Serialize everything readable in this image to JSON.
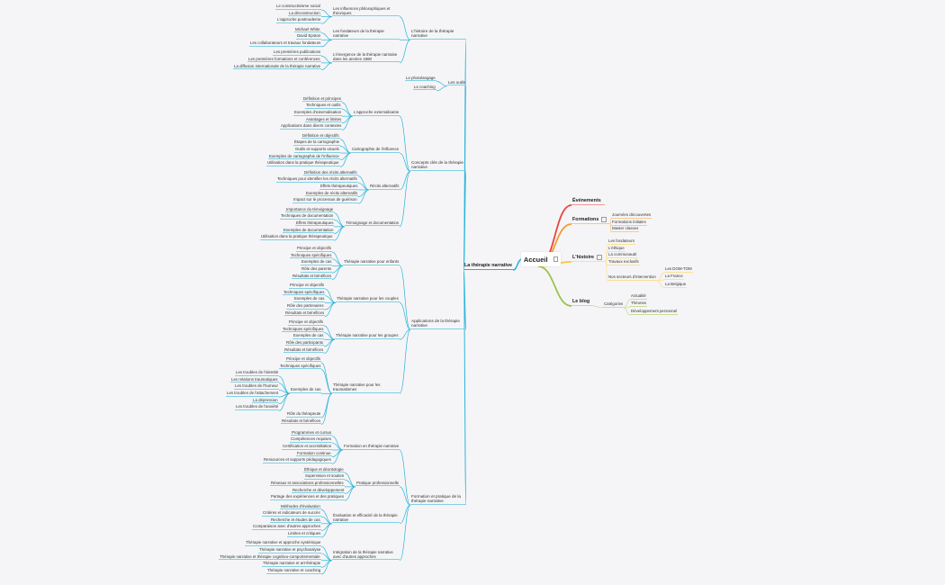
{
  "colors": {
    "left": "#2bb4d9",
    "events": "#e8453c",
    "formations": "#f59a32",
    "histoire": "#f5c842",
    "blog": "#9dc34a",
    "background": "#f5f5f7"
  },
  "root": {
    "label": "Accueil",
    "icon": "note-icon"
  },
  "right": [
    {
      "label": "Événements",
      "color": "#e8453c",
      "children": []
    },
    {
      "label": "Formations",
      "color": "#f59a32",
      "icon": "note-icon",
      "children": [
        {
          "label": "Journées découvertes"
        },
        {
          "label": "Formations initiales"
        },
        {
          "label": "Master classes"
        }
      ]
    },
    {
      "label": "L'histoire",
      "color": "#f5c842",
      "icon": "note-icon",
      "children": [
        {
          "label": "Les fondateurs"
        },
        {
          "label": "L'éthique"
        },
        {
          "label": "La communauté"
        },
        {
          "label": "Travaux exclusifs"
        },
        {
          "label": "Nos secteurs d'intervention",
          "children": [
            {
              "label": "Les DOM-TOM"
            },
            {
              "label": "La France"
            },
            {
              "label": "La Belgique"
            }
          ]
        }
      ]
    },
    {
      "label": "Le blog",
      "color": "#9dc34a",
      "children": [
        {
          "label": "Catégories",
          "children": [
            {
              "label": "Actualité"
            },
            {
              "label": "Théories"
            },
            {
              "label": "Développement personnel"
            }
          ]
        }
      ]
    }
  ],
  "left": {
    "label": "La thérapie narrative",
    "children": [
      {
        "label": "L'histoire de la thérapie narrative",
        "children": [
          {
            "label": "Les influences philosophiques et théoriques",
            "children": [
              {
                "label": "Le constructivisme social"
              },
              {
                "label": "La déconstruction"
              },
              {
                "label": "L'approche postmoderne"
              }
            ]
          },
          {
            "label": "Les fondateurs de la thérapie narrative",
            "children": [
              {
                "label": "Michael White"
              },
              {
                "label": "David Epston"
              },
              {
                "label": "Les collaborateurs et travaux fondateurs"
              }
            ]
          },
          {
            "label": "L'émergence de la thérapie narrative dans les années 1980",
            "children": [
              {
                "label": "Les premières publications"
              },
              {
                "label": "Les premières formations et conférences"
              },
              {
                "label": "La diffusion internationale de la thérapie narrative"
              }
            ]
          }
        ]
      },
      {
        "label": "Les outils",
        "children": [
          {
            "label": "Le photolangage"
          },
          {
            "label": "Le coaching"
          }
        ]
      },
      {
        "label": "Concepts clés de la thérapie narrative",
        "children": [
          {
            "label": "L'approche externalisante",
            "children": [
              {
                "label": "Définition et principes"
              },
              {
                "label": "Techniques et outils"
              },
              {
                "label": "Exemples d'externalisation"
              },
              {
                "label": "Avantages et limites"
              },
              {
                "label": "Applications dans divers contextes"
              }
            ]
          },
          {
            "label": "Cartographie de l'influence",
            "children": [
              {
                "label": "Définition et objectifs"
              },
              {
                "label": "Étapes de la cartographie"
              },
              {
                "label": "Outils et supports visuels"
              },
              {
                "label": "Exemples de cartographie de l'influence"
              },
              {
                "label": "Utilisation dans la pratique thérapeutique"
              }
            ]
          },
          {
            "label": "Récits alternatifs",
            "children": [
              {
                "label": "Définition des récits alternatifs"
              },
              {
                "label": "Techniques pour identifier les récits alternatifs"
              },
              {
                "label": "Effets thérapeutiques"
              },
              {
                "label": "Exemples de récits alternatifs"
              },
              {
                "label": "Impact sur le processus de guérison"
              }
            ]
          },
          {
            "label": "Témoignage et documentation",
            "children": [
              {
                "label": "Importance du témoignage"
              },
              {
                "label": "Techniques de documentation"
              },
              {
                "label": "Effets thérapeutiques"
              },
              {
                "label": "Exemples de documentation"
              },
              {
                "label": "Utilisation dans la pratique thérapeutique"
              }
            ]
          }
        ]
      },
      {
        "label": "Applications de la thérapie narrative",
        "children": [
          {
            "label": "Thérapie narrative pour enfants",
            "children": [
              {
                "label": "Principe et objectifs"
              },
              {
                "label": "Techniques spécifiques"
              },
              {
                "label": "Exemples de cas"
              },
              {
                "label": "Rôle des parents"
              },
              {
                "label": "Résultats et bénéfices"
              }
            ]
          },
          {
            "label": "Thérapie narrative pour les couples",
            "children": [
              {
                "label": "Principe et objectifs"
              },
              {
                "label": "Techniques spécifiques"
              },
              {
                "label": "Exemples de cas"
              },
              {
                "label": "Rôle des partenaires"
              },
              {
                "label": "Résultats et bénéfices"
              }
            ]
          },
          {
            "label": "Thérapie narrative pour les groupes",
            "children": [
              {
                "label": "Principe et objectifs"
              },
              {
                "label": "Techniques spécifiques"
              },
              {
                "label": "Exemples de cas"
              },
              {
                "label": "Rôle des participants"
              },
              {
                "label": "Résultats et bénéfices"
              }
            ]
          },
          {
            "label": "Thérapie narrative pour les traumatismes",
            "children": [
              {
                "label": "Principe et objectifs"
              },
              {
                "label": "Techniques spécifiques"
              },
              {
                "label": "Exemples de cas",
                "children": [
                  {
                    "label": "Les troubles de l'identité"
                  },
                  {
                    "label": "Les relations traumatiques"
                  },
                  {
                    "label": "Les troubles de l'humeur"
                  },
                  {
                    "label": "Les troubles de l'attachement"
                  },
                  {
                    "label": "La dépression"
                  },
                  {
                    "label": "Les troubles de l'anxiété"
                  }
                ]
              },
              {
                "label": "Rôle du thérapeute"
              },
              {
                "label": "Résultats et bénéfices"
              }
            ]
          }
        ]
      },
      {
        "label": "Formation et pratique de la thérapie narrative",
        "children": [
          {
            "label": "Formation en thérapie narrative",
            "children": [
              {
                "label": "Programmes et cursus"
              },
              {
                "label": "Compétences requises"
              },
              {
                "label": "Certification et accréditation"
              },
              {
                "label": "Formation continue"
              },
              {
                "label": "Ressources et supports pédagogiques"
              }
            ]
          },
          {
            "label": "Pratique professionnelle",
            "children": [
              {
                "label": "Éthique et déontologie"
              },
              {
                "label": "Supervision et soutien"
              },
              {
                "label": "Réseaux et associations professionnelles"
              },
              {
                "label": "Recherche et développement"
              },
              {
                "label": "Partage des expériences et des pratiques"
              }
            ]
          },
          {
            "label": "Évaluation et efficacité de la thérapie narrative",
            "children": [
              {
                "label": "Méthodes d'évaluation"
              },
              {
                "label": "Critères et indicateurs de succès"
              },
              {
                "label": "Recherche et études de cas"
              },
              {
                "label": "Comparaison avec d'autres approches"
              },
              {
                "label": "Limites et critiques"
              }
            ]
          },
          {
            "label": "Intégration de la thérapie narrative avec d'autres approches",
            "children": [
              {
                "label": "Thérapie narrative et approche systémique"
              },
              {
                "label": "Thérapie narrative et psychanalyse"
              },
              {
                "label": "Thérapie narrative et thérapie cognitivo-comportementale"
              },
              {
                "label": "Thérapie narrative et art-thérapie"
              },
              {
                "label": "Thérapie narrative et coaching"
              }
            ]
          }
        ]
      }
    ]
  }
}
